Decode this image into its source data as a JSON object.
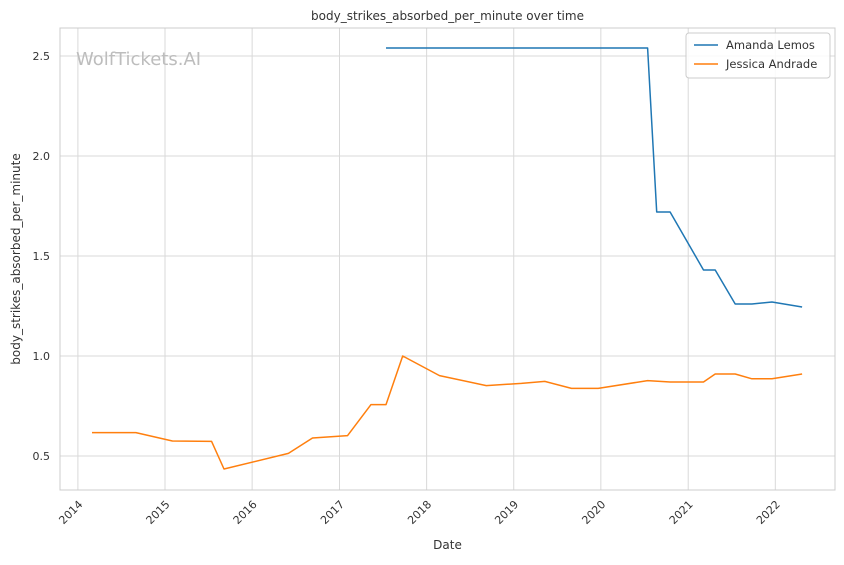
{
  "chart_data": {
    "type": "line",
    "title": "body_strikes_absorbed_per_minute over time",
    "xlabel": "Date",
    "ylabel": "body_strikes_absorbed_per_minute",
    "watermark": "WolfTickets.AI",
    "grid": true,
    "legend_position": "top-right",
    "xlim": [
      "2013-10-18",
      "2022-09-08"
    ],
    "ylim": [
      0.33,
      2.64
    ],
    "x_ticks": [
      "2014",
      "2015",
      "2016",
      "2017",
      "2018",
      "2019",
      "2020",
      "2021",
      "2022"
    ],
    "y_ticks": [
      "0.5",
      "1.0",
      "1.5",
      "2.0",
      "2.5"
    ],
    "series": [
      {
        "name": "Amanda Lemos",
        "color": "#1f77b4",
        "points": [
          {
            "x": "2017-07-15",
            "y": 2.54
          },
          {
            "x": "2020-07-15",
            "y": 2.54
          },
          {
            "x": "2020-08-22",
            "y": 1.72
          },
          {
            "x": "2020-10-17",
            "y": 1.72
          },
          {
            "x": "2021-03-06",
            "y": 1.43
          },
          {
            "x": "2021-04-24",
            "y": 1.43
          },
          {
            "x": "2021-07-17",
            "y": 1.26
          },
          {
            "x": "2021-09-25",
            "y": 1.26
          },
          {
            "x": "2021-12-18",
            "y": 1.27
          },
          {
            "x": "2022-04-23",
            "y": 1.245
          }
        ]
      },
      {
        "name": "Jessica Andrade",
        "color": "#ff7f0e",
        "points": [
          {
            "x": "2014-03-01",
            "y": 0.617
          },
          {
            "x": "2014-09-01",
            "y": 0.617
          },
          {
            "x": "2015-02-01",
            "y": 0.575
          },
          {
            "x": "2015-07-15",
            "y": 0.573
          },
          {
            "x": "2015-09-05",
            "y": 0.435
          },
          {
            "x": "2016-06-01",
            "y": 0.513
          },
          {
            "x": "2016-09-10",
            "y": 0.59
          },
          {
            "x": "2017-02-04",
            "y": 0.602
          },
          {
            "x": "2017-05-13",
            "y": 0.757
          },
          {
            "x": "2017-07-15",
            "y": 0.757
          },
          {
            "x": "2017-09-23",
            "y": 1.0
          },
          {
            "x": "2018-02-24",
            "y": 0.902
          },
          {
            "x": "2018-09-08",
            "y": 0.852
          },
          {
            "x": "2019-02-02",
            "y": 0.863
          },
          {
            "x": "2019-05-11",
            "y": 0.873
          },
          {
            "x": "2019-08-31",
            "y": 0.838
          },
          {
            "x": "2019-12-21",
            "y": 0.838
          },
          {
            "x": "2020-07-15",
            "y": 0.877
          },
          {
            "x": "2020-10-17",
            "y": 0.87
          },
          {
            "x": "2021-03-06",
            "y": 0.87
          },
          {
            "x": "2021-04-24",
            "y": 0.91
          },
          {
            "x": "2021-07-17",
            "y": 0.91
          },
          {
            "x": "2021-09-25",
            "y": 0.886
          },
          {
            "x": "2021-12-18",
            "y": 0.886
          },
          {
            "x": "2022-04-23",
            "y": 0.91
          }
        ]
      }
    ]
  }
}
